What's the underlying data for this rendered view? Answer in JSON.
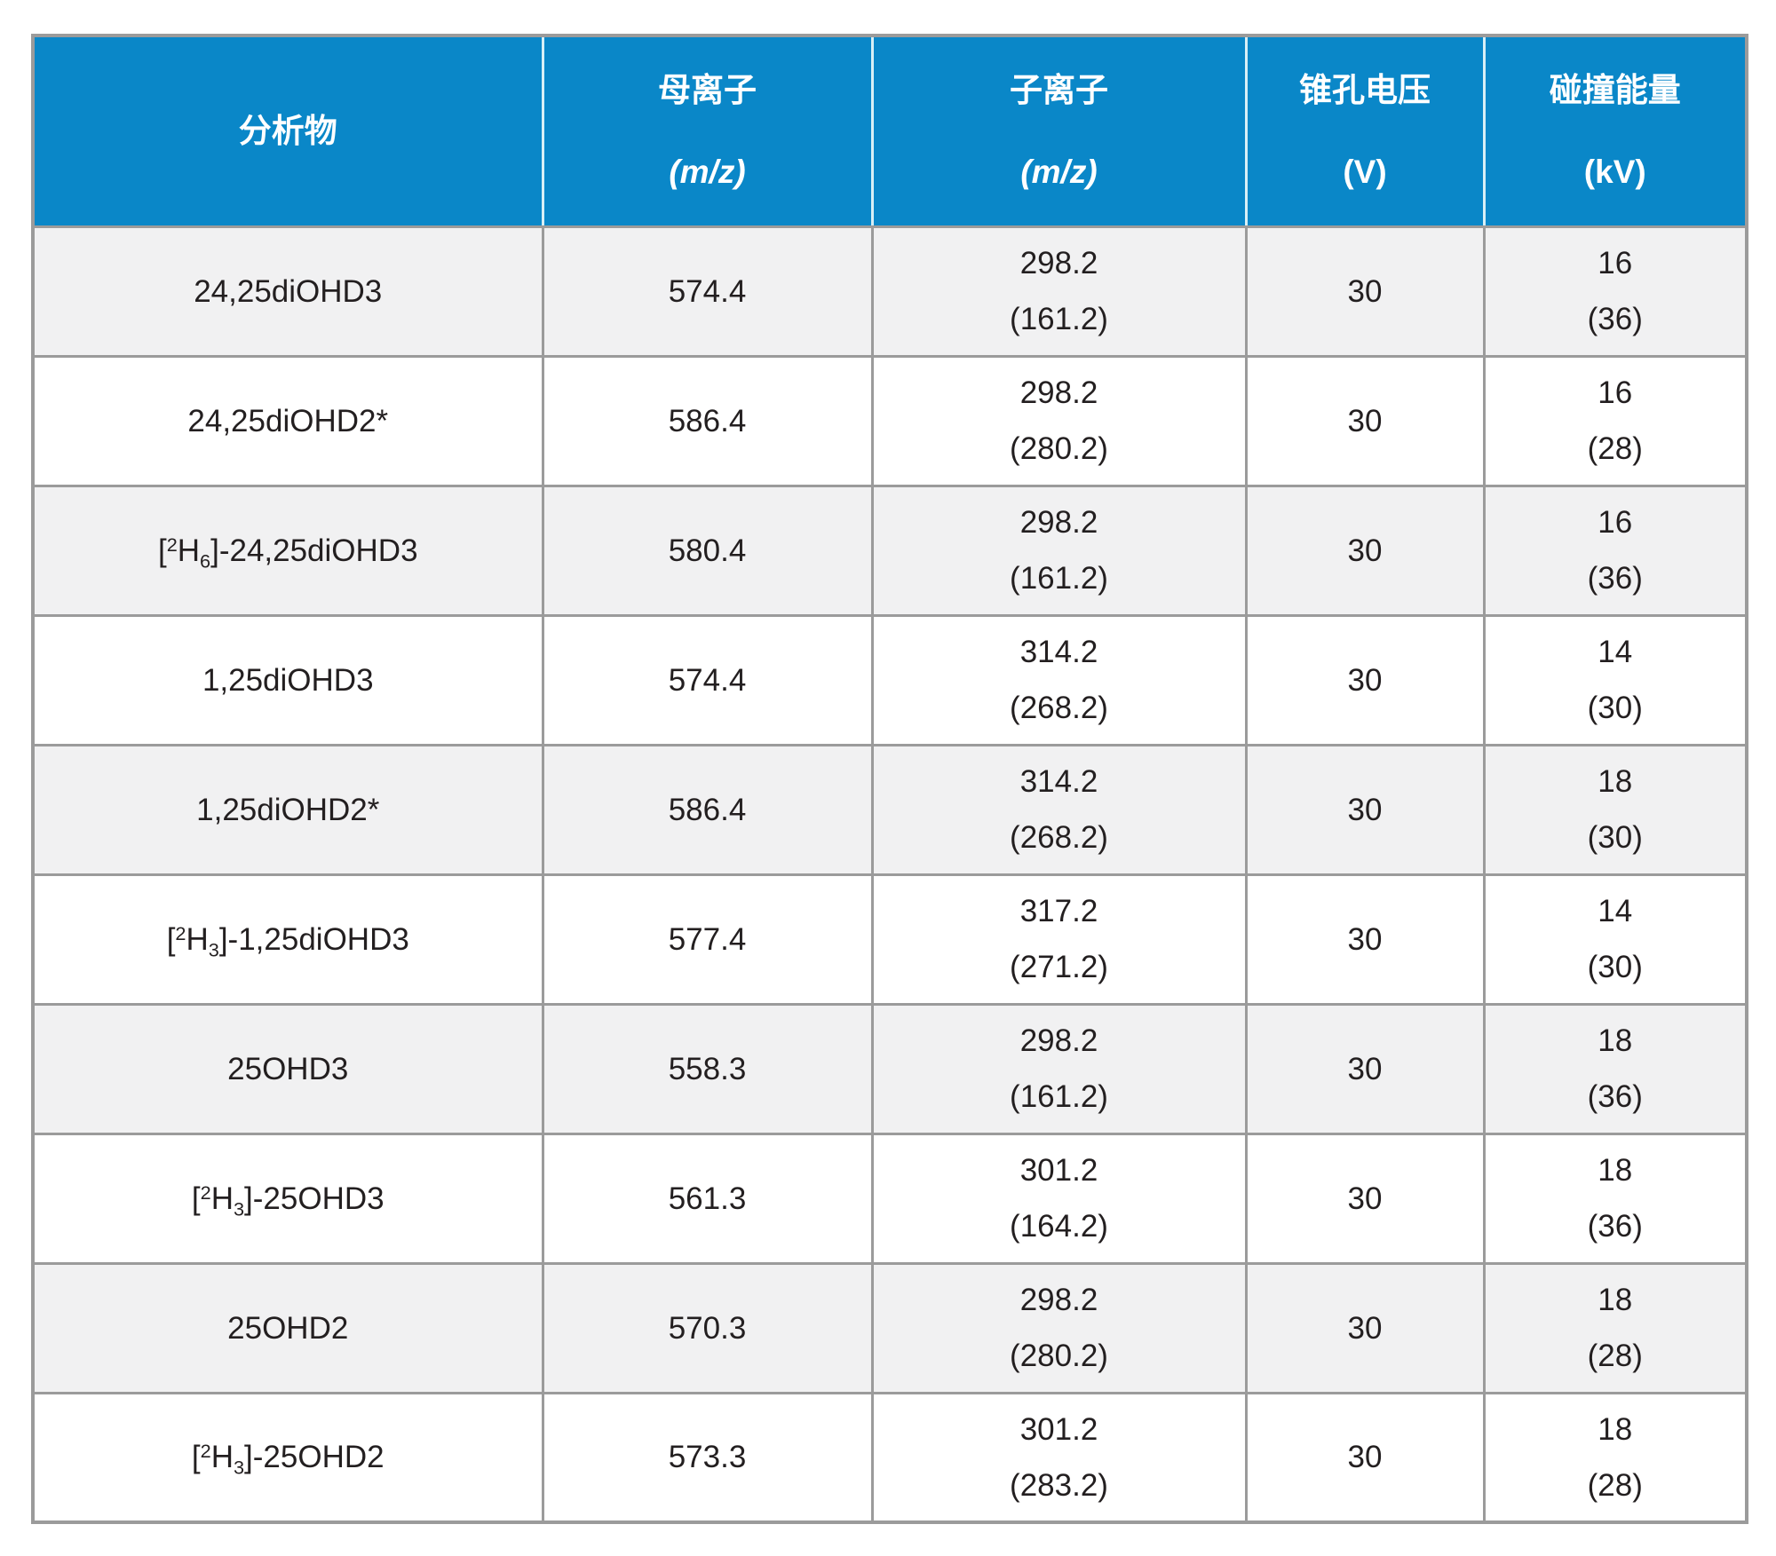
{
  "table": {
    "columns": [
      {
        "label": "分析物",
        "unit": ""
      },
      {
        "label": "母离子",
        "unit": "(m/z)"
      },
      {
        "label": "子离子",
        "unit": "(m/z)"
      },
      {
        "label": "锥孔电压",
        "unit": "(V)"
      },
      {
        "label": "碰撞能量",
        "unit": "(kV)"
      }
    ],
    "rows": [
      {
        "analyte": "24,25diOHD3",
        "parent": "574.4",
        "daughter_main": "298.2",
        "daughter_secondary": "(161.2)",
        "cone": "30",
        "energy_main": "16",
        "energy_secondary": "(36)"
      },
      {
        "analyte": "24,25diOHD2*",
        "parent": "586.4",
        "daughter_main": "298.2",
        "daughter_secondary": "(280.2)",
        "cone": "30",
        "energy_main": "16",
        "energy_secondary": "(28)"
      },
      {
        "analyte": "[²H₆]-24,25diOHD3",
        "parent": "580.4",
        "daughter_main": "298.2",
        "daughter_secondary": "(161.2)",
        "cone": "30",
        "energy_main": "16",
        "energy_secondary": "(36)"
      },
      {
        "analyte": "1,25diOHD3",
        "parent": "574.4",
        "daughter_main": "314.2",
        "daughter_secondary": "(268.2)",
        "cone": "30",
        "energy_main": "14",
        "energy_secondary": "(30)"
      },
      {
        "analyte": "1,25diOHD2*",
        "parent": "586.4",
        "daughter_main": "314.2",
        "daughter_secondary": "(268.2)",
        "cone": "30",
        "energy_main": "18",
        "energy_secondary": "(30)"
      },
      {
        "analyte": "[²H₃]-1,25diOHD3",
        "parent": "577.4",
        "daughter_main": "317.2",
        "daughter_secondary": "(271.2)",
        "cone": "30",
        "energy_main": "14",
        "energy_secondary": "(30)"
      },
      {
        "analyte": "25OHD3",
        "parent": "558.3",
        "daughter_main": "298.2",
        "daughter_secondary": "(161.2)",
        "cone": "30",
        "energy_main": "18",
        "energy_secondary": "(36)"
      },
      {
        "analyte": "[²H₃]-25OHD3",
        "parent": "561.3",
        "daughter_main": "301.2",
        "daughter_secondary": "(164.2)",
        "cone": "30",
        "energy_main": "18",
        "energy_secondary": "(36)"
      },
      {
        "analyte": "25OHD2",
        "parent": "570.3",
        "daughter_main": "298.2",
        "daughter_secondary": "(280.2)",
        "cone": "30",
        "energy_main": "18",
        "energy_secondary": "(28)"
      },
      {
        "analyte": "[²H₃]-25OHD2",
        "parent": "573.3",
        "daughter_main": "301.2",
        "daughter_secondary": "(283.2)",
        "cone": "30",
        "energy_main": "18",
        "energy_secondary": "(28)"
      }
    ]
  },
  "colors": {
    "header_bg": "#0a87c8",
    "header_text": "#ffffff",
    "header_divider": "#d8eff6",
    "grid_line": "#9b9b9b",
    "row_alt_bg": "#f1f1f2",
    "row_bg": "#ffffff",
    "body_text": "#231f20"
  }
}
